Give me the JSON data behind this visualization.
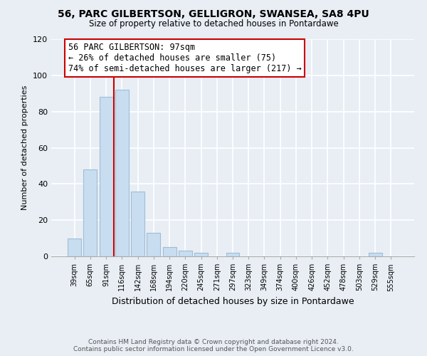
{
  "title1": "56, PARC GILBERTSON, GELLIGRON, SWANSEA, SA8 4PU",
  "title2": "Size of property relative to detached houses in Pontardawe",
  "xlabel": "Distribution of detached houses by size in Pontardawe",
  "ylabel": "Number of detached properties",
  "bar_labels": [
    "39sqm",
    "65sqm",
    "91sqm",
    "116sqm",
    "142sqm",
    "168sqm",
    "194sqm",
    "220sqm",
    "245sqm",
    "271sqm",
    "297sqm",
    "323sqm",
    "349sqm",
    "374sqm",
    "400sqm",
    "426sqm",
    "452sqm",
    "478sqm",
    "503sqm",
    "529sqm",
    "555sqm"
  ],
  "bar_values": [
    10,
    48,
    88,
    92,
    36,
    13,
    5,
    3,
    2,
    0,
    2,
    0,
    0,
    0,
    0,
    0,
    0,
    0,
    0,
    2,
    0
  ],
  "bar_color": "#c8ddf0",
  "bar_edge_color": "#a0bcd8",
  "vline_color": "#cc0000",
  "ylim": [
    0,
    120
  ],
  "yticks": [
    0,
    20,
    40,
    60,
    80,
    100,
    120
  ],
  "annotation_title": "56 PARC GILBERTSON: 97sqm",
  "annotation_line1": "← 26% of detached houses are smaller (75)",
  "annotation_line2": "74% of semi-detached houses are larger (217) →",
  "annotation_box_color": "#ffffff",
  "annotation_box_edge": "#cc0000",
  "footer1": "Contains HM Land Registry data © Crown copyright and database right 2024.",
  "footer2": "Contains public sector information licensed under the Open Government Licence v3.0.",
  "background_color": "#e8eef4"
}
